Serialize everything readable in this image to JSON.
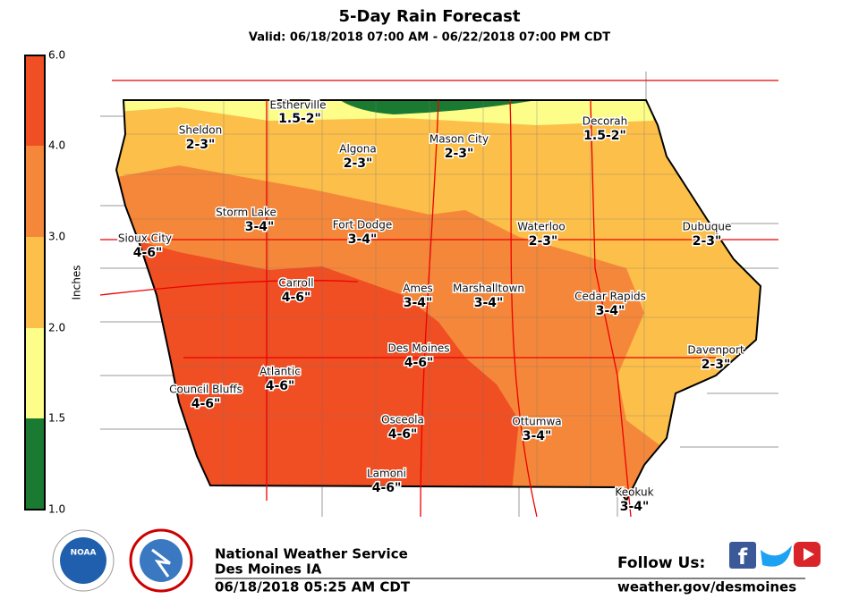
{
  "header": {
    "title": "5-Day Rain Forecast",
    "subtitle": "Valid: 06/18/2018 07:00 AM - 06/22/2018 07:00 PM CDT"
  },
  "legend": {
    "title": "Inches",
    "ticks": [
      "6.0",
      "4.0",
      "3.0",
      "2.0",
      "1.5",
      "1.0"
    ],
    "colors": [
      "#f04e23",
      "#f5873a",
      "#fcc04a",
      "#fdfd8a",
      "#1b7a31"
    ]
  },
  "cities": [
    {
      "name": "Estherville",
      "amount": "1.5-2\""
    },
    {
      "name": "Sheldon",
      "amount": "2-3\""
    },
    {
      "name": "Algona",
      "amount": "2-3\""
    },
    {
      "name": "Mason City",
      "amount": "2-3\""
    },
    {
      "name": "Decorah",
      "amount": "1.5-2\""
    },
    {
      "name": "Storm Lake",
      "amount": "3-4\""
    },
    {
      "name": "Fort Dodge",
      "amount": "3-4\""
    },
    {
      "name": "Waterloo",
      "amount": "2-3\""
    },
    {
      "name": "Dubuque",
      "amount": "2-3\""
    },
    {
      "name": "Sioux City",
      "amount": "4-6\""
    },
    {
      "name": "Carroll",
      "amount": "4-6\""
    },
    {
      "name": "Ames",
      "amount": "3-4\""
    },
    {
      "name": "Marshalltown",
      "amount": "3-4\""
    },
    {
      "name": "Cedar Rapids",
      "amount": "3-4\""
    },
    {
      "name": "Des Moines",
      "amount": "4-6\""
    },
    {
      "name": "Davenport",
      "amount": "2-3\""
    },
    {
      "name": "Atlantic",
      "amount": "4-6\""
    },
    {
      "name": "Council Bluffs",
      "amount": "4-6\""
    },
    {
      "name": "Osceola",
      "amount": "4-6\""
    },
    {
      "name": "Ottumwa",
      "amount": "3-4\""
    },
    {
      "name": "Lamoni",
      "amount": "4-6\""
    },
    {
      "name": "Keokuk",
      "amount": "3-4\""
    }
  ],
  "footer": {
    "office": "National Weather Service",
    "location": "Des Moines IA",
    "issued": "06/18/2018 05:25 AM CDT",
    "follow": "Follow Us:",
    "url": "weather.gov/desmoines"
  }
}
